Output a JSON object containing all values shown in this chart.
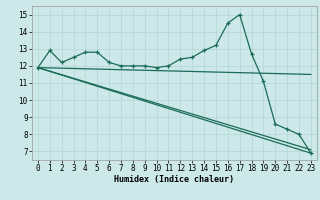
{
  "xlabel": "Humidex (Indice chaleur)",
  "bg_color": "#cce8e8",
  "grid_color": "#b8d8d8",
  "line_color": "#1a6b5a",
  "xlim": [
    -0.5,
    23.5
  ],
  "ylim": [
    6.5,
    15.5
  ],
  "xticks": [
    0,
    1,
    2,
    3,
    4,
    5,
    6,
    7,
    8,
    9,
    10,
    11,
    12,
    13,
    14,
    15,
    16,
    17,
    18,
    19,
    20,
    21,
    22,
    23
  ],
  "yticks": [
    7,
    8,
    9,
    10,
    11,
    12,
    13,
    14,
    15
  ],
  "lines": [
    {
      "x": [
        0,
        1,
        2,
        3,
        4,
        5,
        6,
        7,
        8,
        9,
        10,
        11,
        12,
        13,
        14,
        15,
        16,
        17,
        18,
        19,
        20,
        21,
        22,
        23
      ],
      "y": [
        11.9,
        12.9,
        12.2,
        12.5,
        12.8,
        12.8,
        12.2,
        12.0,
        12.0,
        12.0,
        11.9,
        12.0,
        12.4,
        12.5,
        12.9,
        13.2,
        14.5,
        15.0,
        12.7,
        11.1,
        8.6,
        8.3,
        8.0,
        6.9
      ],
      "has_marker": true
    },
    {
      "x": [
        0,
        23
      ],
      "y": [
        11.9,
        11.5
      ],
      "has_marker": false
    },
    {
      "x": [
        0,
        23
      ],
      "y": [
        11.9,
        7.1
      ],
      "has_marker": false
    },
    {
      "x": [
        0,
        23
      ],
      "y": [
        11.9,
        6.9
      ],
      "has_marker": false
    }
  ],
  "tick_fontsize": 5.5,
  "xlabel_fontsize": 6.0
}
